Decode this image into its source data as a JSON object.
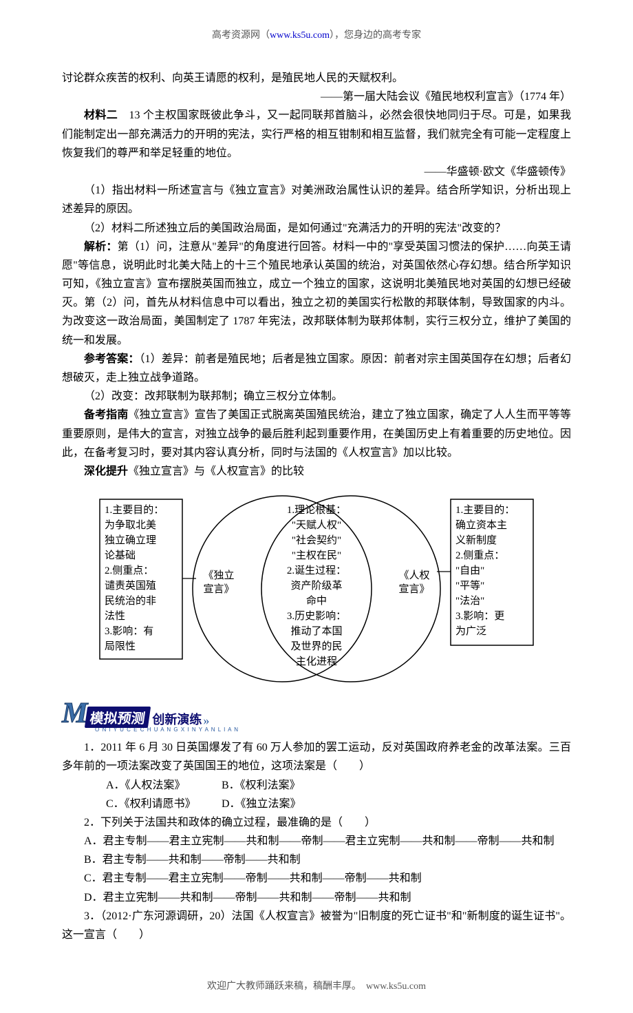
{
  "header": {
    "left": "高考资源网（",
    "link": "www.ks5u.com",
    "right": "），您身边的高考专家"
  },
  "body": {
    "p1": "讨论群众疾苦的权利、向英王请愿的权利，是殖民地人民的天赋权利。",
    "p2": "——第一届大陆会议《殖民地权利宣言》（1774 年）",
    "p3_label": "材料二",
    "p3": "　13 个主权国家既彼此争斗，又一起同联邦首脑斗，必然会很快地同归于尽。可是，如果我们能制定出一部充满活力的开明的宪法，实行严格的相互钳制和相互监督，我们就完全有可能一定程度上恢复我们的尊严和举足轻重的地位。",
    "p4": "——华盛顿·欧文《华盛顿传》",
    "q1": "（1）指出材料一所述宣言与《独立宣言》对美洲政治属性认识的差异。结合所学知识，分析出现上述差异的原因。",
    "q2": "（2）材料二所述独立后的美国政治局面，是如何通过\"充满活力的开明的宪法\"改变的？",
    "jiexi_label": "解析：",
    "jiexi": "第（1）问，注意从\"差异\"的角度进行回答。材料一中的\"享受英国习惯法的保护……向英王请愿\"等信息，说明此时北美大陆上的十三个殖民地承认英国的统治，对英国依然心存幻想。结合所学知识可知，《独立宣言》宣布摆脱英国而独立，成立一个独立的国家，这说明北美殖民地对英国的幻想已经破灭。第（2）问，首先从材料信息中可以看出，独立之初的美国实行松散的邦联体制，导致国家的内斗。为改变这一政治局面，美国制定了 1787 年宪法，改邦联体制为联邦体制，实行三权分立，维护了美国的统一和发展。",
    "ans_label": "参考答案：",
    "ans1": "（1）差异：前者是殖民地；后者是独立国家。原因：前者对宗主国英国存在幻想；后者幻想破灭，走上独立战争道路。",
    "ans2": "（2）改变：改邦联制为联邦制；确立三权分立体制。",
    "bk_label": "备考指南",
    "bk": "《独立宣言》宣告了美国正式脱离英国殖民统治，建立了独立国家，确定了人人生而平等等重要原则，是伟大的宣言，对独立战争的最后胜利起到重要作用，在美国历史上有着重要的历史地位。因此，在备考复习时，要对其内容认真分析，同时与法国的《人权宣言》加以比较。",
    "sh_label": "深化提升",
    "sh": "《独立宣言》与《人权宣言》的比较"
  },
  "venn": {
    "left_label": "《独立\n宣言》",
    "right_label": "《人权\n宣言》",
    "left": [
      "1.主要目的：",
      "为争取北美",
      "独立确立理",
      "论基础",
      "2.侧重点：",
      "谴责英国殖",
      "民统治的非",
      "法性",
      "3.影响：有",
      "局限性"
    ],
    "center": [
      "1.理论根基：",
      "\"天赋人权\"",
      "\"社会契约\"",
      "\"主权在民\"",
      "2.诞生过程：",
      "资产阶级革",
      "命中",
      "3.历史影响：",
      "推动了本国",
      "及世界的民",
      "主化进程"
    ],
    "right": [
      "1.主要目的：",
      "确立资本主",
      "义新制度",
      "2.侧重点：",
      "\"自由\"",
      "\"平等\"",
      "\"法治\"",
      "3.影响：更",
      "为广泛"
    ],
    "colors": {
      "stroke": "#000000",
      "fill": "#ffffff",
      "text": "#000000"
    },
    "fontsize": 15,
    "line_height": 22
  },
  "section": {
    "title": "模拟预测",
    "sub": "创新演练",
    "arrow": "»",
    "pinyin": "O N I Y U C E C H U A N G X I N Y A N L I A N"
  },
  "mc": {
    "q1": "1．2011 年 6 月 30 日英国爆发了有 60 万人参加的罢工运动，反对英国政府养老金的改革法案。三百多年前的一项法案改变了英国国王的地位，这项法案是（　　）",
    "q1a": "A．《人权法案》",
    "q1b": "B．《权利法案》",
    "q1c": "C．《权利请愿书》",
    "q1d": "D．《独立法案》",
    "q2": "2．下列关于法国共和政体的确立过程，最准确的是（　　）",
    "q2a": "A．君主专制——君主立宪制——共和制——帝制——君主立宪制——共和制——帝制——共和制",
    "q2b": "B．君主专制——共和制——帝制——共和制",
    "q2c": "C．君主专制——君主立宪制——帝制——共和制——帝制——共和制",
    "q2d": "D．君主立宪制——共和制——帝制——共和制——帝制——共和制",
    "q3": "3．（2012·广东河源调研，20）法国《人权宣言》被誉为\"旧制度的死亡证书\"和\"新制度的诞生证书\"。这一宣言（　　）"
  },
  "footer": {
    "left": "欢迎广大教师踊跃来稿，稿酬丰厚。",
    "link": "www.ks5u.com"
  }
}
